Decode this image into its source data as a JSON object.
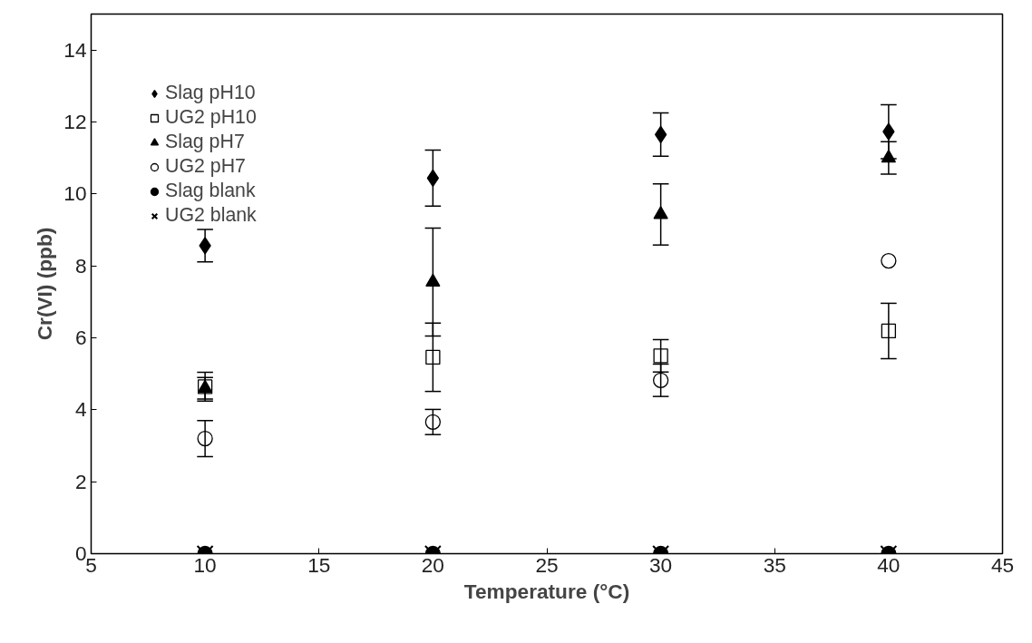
{
  "chart_data": {
    "type": "scatter",
    "xlabel": "Temperature (°C)",
    "ylabel": "Cr(VI) (ppb)",
    "x": [
      10,
      20,
      30,
      40
    ],
    "xlim": [
      5,
      45
    ],
    "xticks": [
      5,
      10,
      15,
      20,
      25,
      30,
      35,
      40,
      45
    ],
    "ylim": [
      0,
      15
    ],
    "yticks": [
      0,
      2,
      4,
      6,
      8,
      10,
      12,
      14
    ],
    "grid": false,
    "legend": "top left",
    "series": [
      {
        "name": "Slag pH10",
        "color": "#000000",
        "marker": "diamond",
        "values": [
          8.56,
          10.44,
          11.65,
          11.73
        ],
        "errors": [
          0.45,
          0.78,
          0.6,
          0.75
        ]
      },
      {
        "name": "UG2 pH10",
        "marker": "square",
        "values": [
          4.64,
          5.46,
          5.5,
          6.19
        ],
        "errors": [
          0.4,
          0.95,
          0.45,
          0.77
        ]
      },
      {
        "name": "Slag pH7",
        "color": "#000000",
        "marker": "triangle",
        "values": [
          4.6,
          7.55,
          9.43,
          11.0
        ],
        "errors": [
          0.3,
          1.5,
          0.85,
          0.45
        ]
      },
      {
        "name": "UG2 pH7",
        "marker": "circle",
        "values": [
          3.2,
          3.66,
          4.82,
          8.14
        ],
        "errors": [
          0.5,
          0.35,
          0.45,
          null
        ]
      },
      {
        "name": "Slag blank",
        "color": "#000000",
        "marker": "circle",
        "values": [
          0,
          0,
          0,
          0
        ]
      },
      {
        "name": "UG2 blank",
        "color": "#000000",
        "marker": "cross",
        "values": [
          0,
          0,
          0,
          0
        ]
      }
    ]
  }
}
